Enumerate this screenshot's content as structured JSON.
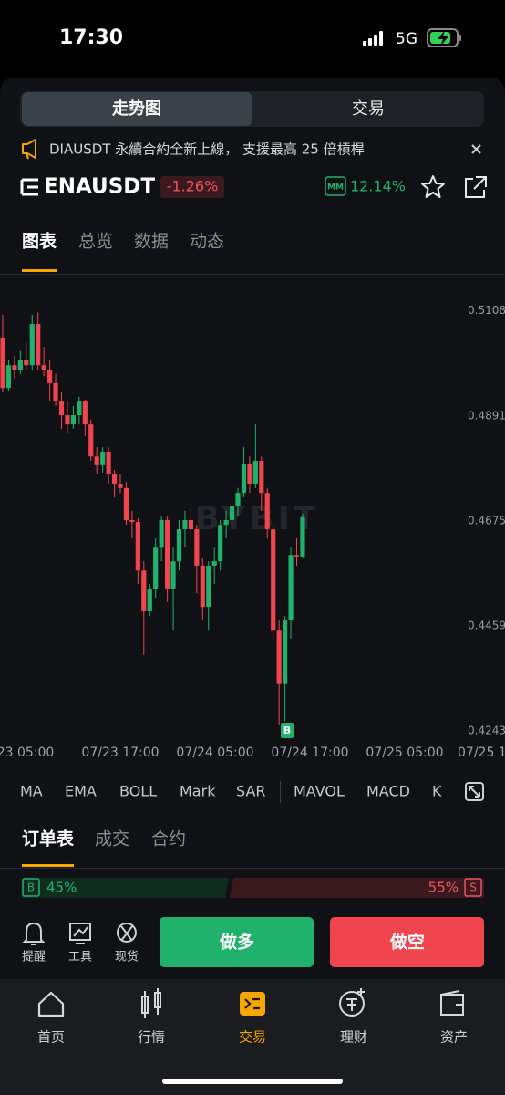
{
  "status_bar": {
    "time": "17:30",
    "network": "5G"
  },
  "segment_tabs": [
    "走势图",
    "交易"
  ],
  "announcement": "DIAUSDT 永續合約全新上線， 支援最高 25 倍槓桿",
  "symbol": {
    "name": "ENAUSDT",
    "change": "-1.26%",
    "mm_label": "MM",
    "mm_value": "12.14%"
  },
  "chart_tabs": [
    "图表",
    "总览",
    "数据",
    "动态"
  ],
  "chart_data": {
    "type": "candlestick",
    "up_color": "#20b26c",
    "down_color": "#f0444f",
    "watermark": "BYBIT",
    "marker": "B",
    "open": [
      0.5053,
      0.4949,
      0.4996,
      0.4987,
      0.5006,
      0.4996,
      0.5081,
      0.4996,
      0.4987,
      0.4959,
      0.4921,
      0.4893,
      0.4874,
      0.4893,
      0.4921,
      0.4874,
      0.4808,
      0.479,
      0.4818,
      0.4771,
      0.4752,
      0.4743,
      0.4677,
      0.4673,
      0.4573,
      0.4489,
      0.4536,
      0.462,
      0.4677,
      0.4536,
      0.4592,
      0.4658,
      0.4677,
      0.4658,
      0.4583,
      0.4498,
      0.4583,
      0.4592,
      0.4667,
      0.4677,
      0.4705,
      0.4733,
      0.4793,
      0.4752,
      0.4799,
      0.4733,
      0.4658,
      0.4451,
      0.4339,
      0.447,
      0.4605,
      0.4602
    ],
    "high": [
      0.51,
      0.5006,
      0.5015,
      0.5025,
      0.5043,
      0.51,
      0.5105,
      0.5034,
      0.5006,
      0.4978,
      0.494,
      0.4921,
      0.4912,
      0.4931,
      0.4925,
      0.4884,
      0.4827,
      0.4827,
      0.4827,
      0.478,
      0.4771,
      0.4756,
      0.4696,
      0.4681,
      0.4592,
      0.4545,
      0.4639,
      0.4686,
      0.4686,
      0.462,
      0.4677,
      0.4696,
      0.4714,
      0.4667,
      0.4598,
      0.4592,
      0.462,
      0.4677,
      0.4696,
      0.4724,
      0.4743,
      0.4827,
      0.4808,
      0.4874,
      0.4808,
      0.4743,
      0.4667,
      0.447,
      0.4479,
      0.462,
      0.4639,
      0.469
    ],
    "low": [
      0.494,
      0.4944,
      0.4968,
      0.4978,
      0.4987,
      0.4987,
      0.4987,
      0.4974,
      0.4921,
      0.4912,
      0.4865,
      0.4855,
      0.4865,
      0.4874,
      0.485,
      0.4799,
      0.4771,
      0.4775,
      0.4752,
      0.4724,
      0.4733,
      0.4667,
      0.4639,
      0.4545,
      0.4399,
      0.4479,
      0.4517,
      0.4592,
      0.4508,
      0.4451,
      0.4573,
      0.462,
      0.4639,
      0.4526,
      0.447,
      0.4451,
      0.4545,
      0.4573,
      0.4639,
      0.4658,
      0.4686,
      0.4724,
      0.4733,
      0.4743,
      0.4696,
      0.4639,
      0.4433,
      0.4254,
      0.4263,
      0.4433,
      0.4583,
      0.4598
    ],
    "close": [
      0.4949,
      0.4996,
      0.4987,
      0.5006,
      0.4996,
      0.5081,
      0.4996,
      0.4987,
      0.4959,
      0.4921,
      0.4893,
      0.4874,
      0.4893,
      0.4921,
      0.4874,
      0.4808,
      0.479,
      0.4818,
      0.4771,
      0.4752,
      0.4743,
      0.4677,
      0.4673,
      0.4573,
      0.4489,
      0.4536,
      0.462,
      0.4677,
      0.4536,
      0.4592,
      0.4658,
      0.4677,
      0.4658,
      0.4583,
      0.4498,
      0.4583,
      0.4592,
      0.4667,
      0.4677,
      0.4705,
      0.4733,
      0.4793,
      0.4752,
      0.4799,
      0.4733,
      0.4658,
      0.4451,
      0.4339,
      0.447,
      0.4605,
      0.4602,
      0.4683
    ],
    "ylim": [
      0.4222,
      0.5175
    ],
    "yticks": [
      0.5108,
      0.4891,
      0.4675,
      0.4459,
      0.4243
    ],
    "x_labels": [
      "23 05:00",
      "07/23 17:00",
      "07/24 05:00",
      "07/24 17:00",
      "07/25 05:00",
      "07/25 17"
    ]
  },
  "indicators": [
    "MA",
    "EMA",
    "BOLL",
    "Mark",
    "SAR",
    "MAVOL",
    "MACD",
    "K"
  ],
  "order_tabs": [
    "订单表",
    "成交",
    "合约"
  ],
  "ratio": {
    "buy_label": "B",
    "buy": "45%",
    "sell": "55%",
    "sell_label": "S"
  },
  "actions": [
    "提醒",
    "工具",
    "现货"
  ],
  "buttons": {
    "long": "做多",
    "short": "做空"
  },
  "nav": [
    "首页",
    "行情",
    "交易",
    "理财",
    "资产"
  ]
}
